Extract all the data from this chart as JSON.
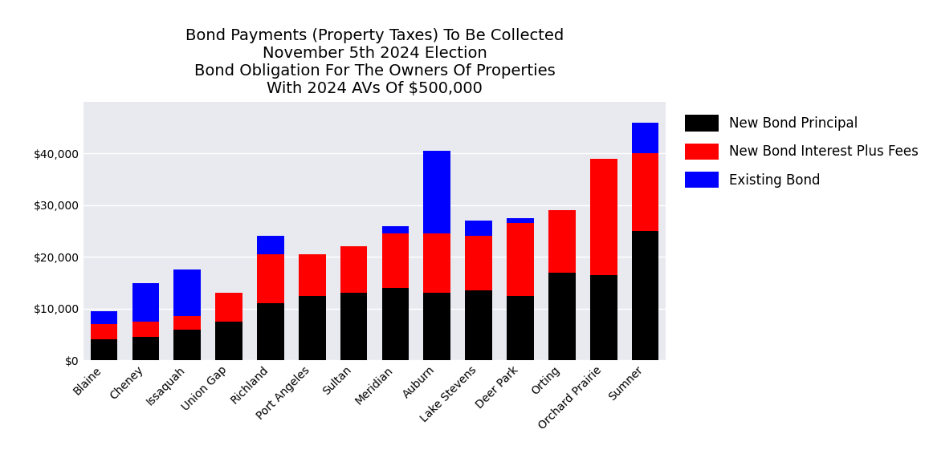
{
  "title": "Bond Payments (Property Taxes) To Be Collected\nNovember 5th 2024 Election\nBond Obligation For The Owners Of Properties\nWith 2024 AVs Of $500,000",
  "categories": [
    "Blaine",
    "Cheney",
    "Issaquah",
    "Union Gap",
    "Richland",
    "Port Angeles",
    "Sultan",
    "Meridian",
    "Auburn",
    "Lake Stevens",
    "Deer Park",
    "Orting",
    "Orchard Prairie",
    "Sumner"
  ],
  "principal": [
    4000,
    4500,
    6000,
    7500,
    11000,
    12500,
    13000,
    14000,
    13000,
    13500,
    12500,
    17000,
    16500,
    25000
  ],
  "interest": [
    3000,
    3000,
    2500,
    5500,
    9500,
    8000,
    9000,
    10500,
    11500,
    10500,
    14000,
    12000,
    22500,
    15000
  ],
  "existing": [
    2500,
    7500,
    9000,
    0,
    3500,
    0,
    0,
    1500,
    16000,
    3000,
    1000,
    0,
    0,
    6000
  ],
  "legend_labels": [
    "New Bond Principal",
    "New Bond Interest Plus Fees",
    "Existing Bond"
  ],
  "colors": [
    "#000000",
    "#ff0000",
    "#0000ff"
  ],
  "plot_bg_color": "#e8eaf0",
  "fig_bg_color": "#ffffff",
  "ylim": [
    0,
    50000
  ],
  "yticks": [
    0,
    10000,
    20000,
    30000,
    40000
  ],
  "title_fontsize": 14,
  "tick_fontsize": 10,
  "legend_fontsize": 12,
  "bar_width": 0.65
}
